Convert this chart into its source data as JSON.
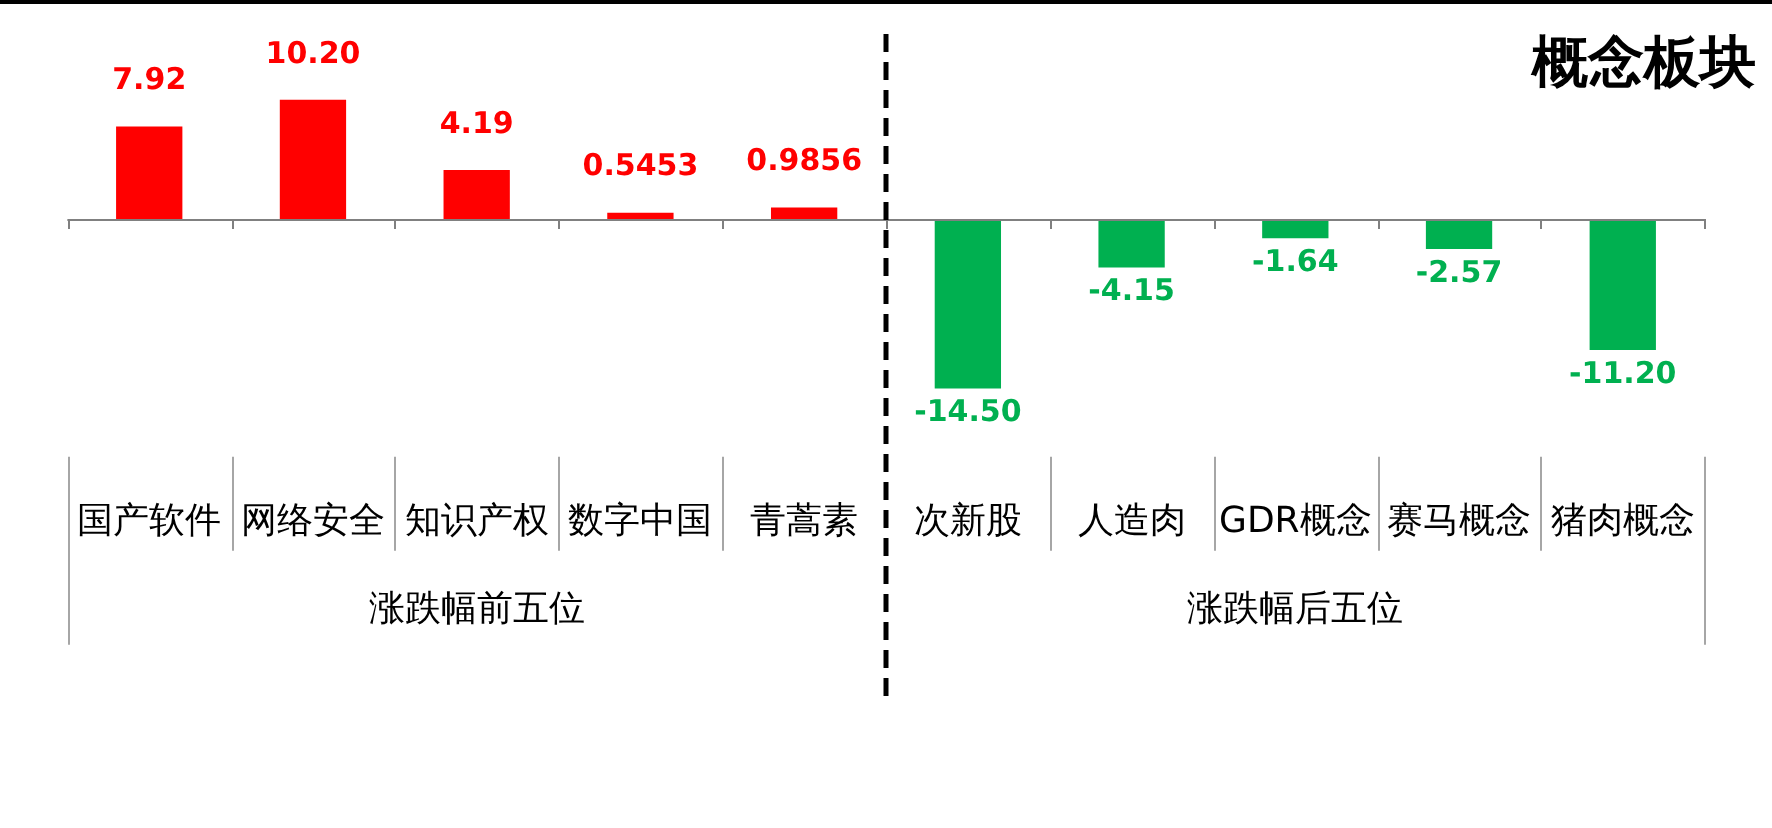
{
  "chart_data": {
    "type": "bar",
    "title": "概念板块",
    "categories": [
      "国产软件",
      "网络安全",
      "知识产权",
      "数字中国",
      "青蒿素",
      "次新股",
      "人造肉",
      "GDR概念",
      "赛马概念",
      "猪肉概念"
    ],
    "values": [
      7.92,
      10.2,
      4.19,
      0.5453,
      0.9856,
      -14.5,
      -4.15,
      -1.64,
      -2.57,
      -11.2
    ],
    "colors": [
      "#ff0000",
      "#ff0000",
      "#ff0000",
      "#ff0000",
      "#ff0000",
      "#00b050",
      "#00b050",
      "#00b050",
      "#00b050",
      "#00b050"
    ],
    "value_labels": [
      "7.92",
      "10.20",
      "4.19",
      "0.5453",
      "0.9856",
      "-14.50",
      "-4.15",
      "-1.64",
      "-2.57",
      "-11.20"
    ],
    "annotations": [
      "涨跌幅前五位",
      "涨跌幅后五位"
    ],
    "tick_labels": "x"
  }
}
